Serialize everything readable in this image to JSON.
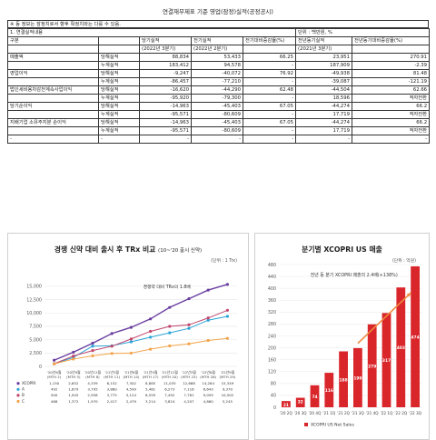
{
  "doc_title": "연결재무제표 기준 영업(잠정)실적(공정공시)",
  "notice": "※ 동 정보는 잠정치로서 향후 확정치와는 다를 수 있음.",
  "table": {
    "section": "1. 연결실적내용",
    "unit": "단위 : 백만원, %",
    "col_headers": [
      "구분",
      "",
      "당기실적",
      "전기실적",
      "전기대비증감율(%)",
      "전년동기실적",
      "전년동기대비증감율(%)"
    ],
    "col_subheaders": [
      "",
      "",
      "(2022년 3분기)",
      "(2022년 2분기)",
      "",
      "(2021년 3분기)",
      ""
    ],
    "rows": [
      [
        "매출액",
        "당해실적",
        "88,834",
        "53,433",
        "66.25",
        "23,951",
        "270.91"
      ],
      [
        "",
        "누계실적",
        "183,412",
        "94,578",
        "-",
        "187,909",
        "-2.39"
      ],
      [
        "영업이익",
        "당해실적",
        "-9,247",
        "-40,072",
        "76.92",
        "-49,938",
        "81.48"
      ],
      [
        "",
        "누계실적",
        "-86,457",
        "-77,210",
        "-",
        "-39,087",
        "-121.19"
      ],
      [
        "법인세비용차감전계속사업이익",
        "당해실적",
        "-16,620",
        "-44,290",
        "62.48",
        "-44,504",
        "62.66"
      ],
      [
        "",
        "누계실적",
        "-95,920",
        "-79,300",
        "-",
        "18,596",
        "적자전환"
      ],
      [
        "당기순이익",
        "당해실적",
        "-14,963",
        "-45,403",
        "67.05",
        "-44,274",
        "66.2"
      ],
      [
        "",
        "누계실적",
        "-95,571",
        "-80,609",
        "-",
        "17,719",
        "적자전환"
      ],
      [
        "지배기업 소유주지분 순이익",
        "당해실적",
        "-14,963",
        "-45,403",
        "67.05",
        "-44,274",
        "66.2"
      ],
      [
        "",
        "누계실적",
        "-95,571",
        "-80,609",
        "-",
        "17,719",
        "적자전환"
      ],
      [
        "-",
        "-",
        "-",
        "-",
        "-",
        "-",
        "-"
      ]
    ]
  },
  "chart_data": [
    {
      "type": "line",
      "title": "경쟁 신약 대비 출시 후 TRx 비교",
      "subtitle": "(10~'20 출시 신약)",
      "unit_label": "(단위 : 1 Trx)",
      "annotation": "경쟁약 대비 TRx의 1.8배",
      "x": [
        "'20년6월\n(MTH 2)",
        "'20년9월\n(MTH 5)",
        "'20년12월\n(MTH 8)",
        "'21년3월\n(MTH 11)",
        "'21년6월\n(MTH 14)",
        "'21년9월\n(MTH 17)",
        "'21년12월\n(MTH 20)",
        "'22년3월\n(MTH 23)",
        "'22년6월\n(MTH 26)",
        "'22년9월\n(MTH 29)"
      ],
      "ylim": [
        0,
        16000
      ],
      "yticks": [
        "0",
        "2,500",
        "5,000",
        "7,500",
        "10,000",
        "12,500",
        "15,000"
      ],
      "series": [
        {
          "name": "XCOPRI",
          "color": "#6a3fa0",
          "values": [
            1150,
            2652,
            4339,
            6152,
            7302,
            8885,
            11035,
            12668,
            14284,
            15349
          ]
        },
        {
          "name": "A",
          "color": "#2ba3d6",
          "values": [
            492,
            1679,
            3795,
            3860,
            4599,
            5461,
            6273,
            7116,
            8643,
            9370
          ]
        },
        {
          "name": "B",
          "color": "#c0466c",
          "values": [
            500,
            1945,
            2958,
            3775,
            5124,
            6559,
            7492,
            7781,
            9059,
            10502
          ]
        },
        {
          "name": "C",
          "color": "#f2a34a",
          "values": [
            468,
            1372,
            1970,
            2417,
            2479,
            3214,
            3824,
            4207,
            4860,
            5245
          ]
        }
      ],
      "table_labels": {
        "XCOPRI": [
          "1,150",
          "2,652",
          "4,339",
          "6,152",
          "7,302",
          "8,885",
          "11,035",
          "12,668",
          "14,284",
          "15,349"
        ],
        "A": [
          "492",
          "1,679",
          "3,795",
          "3,860",
          "4,599",
          "5,461",
          "6,273",
          "7,116",
          "8,643",
          "9,370"
        ],
        "B": [
          "500",
          "1,945",
          "2,958",
          "3,775",
          "5,124",
          "6,559",
          "7,492",
          "7,781",
          "9,059",
          "10,502"
        ],
        "C": [
          "468",
          "1,372",
          "1,970",
          "2,417",
          "2,479",
          "3,214",
          "3,824",
          "4,207",
          "4,860",
          "5,245"
        ]
      }
    },
    {
      "type": "bar",
      "title": "분기별 XCOPRI US 매출",
      "unit_label": "(단위 : 억원)",
      "annotation": "전년 동 분기 XCOPRI 매출의 2.4배(+138%)",
      "categories": [
        "'20 2Q",
        "'20 3Q",
        "'20 4Q",
        "'21 1Q",
        "'21 2Q",
        "'21 3Q",
        "'21 4Q",
        "'22 1Q",
        "'22 2Q",
        "'22 3Q"
      ],
      "values": [
        21,
        32,
        74,
        116,
        188,
        199,
        279,
        317,
        403,
        474
      ],
      "ylim": [
        0,
        480
      ],
      "yticks": [
        "0",
        "40",
        "80",
        "120",
        "160",
        "200",
        "240",
        "280",
        "320",
        "360",
        "400",
        "440",
        "480"
      ],
      "legend": "XCOPRI US Net Sales",
      "bar_color": "#d9262b",
      "arrow_color": "#f08a3c"
    }
  ]
}
